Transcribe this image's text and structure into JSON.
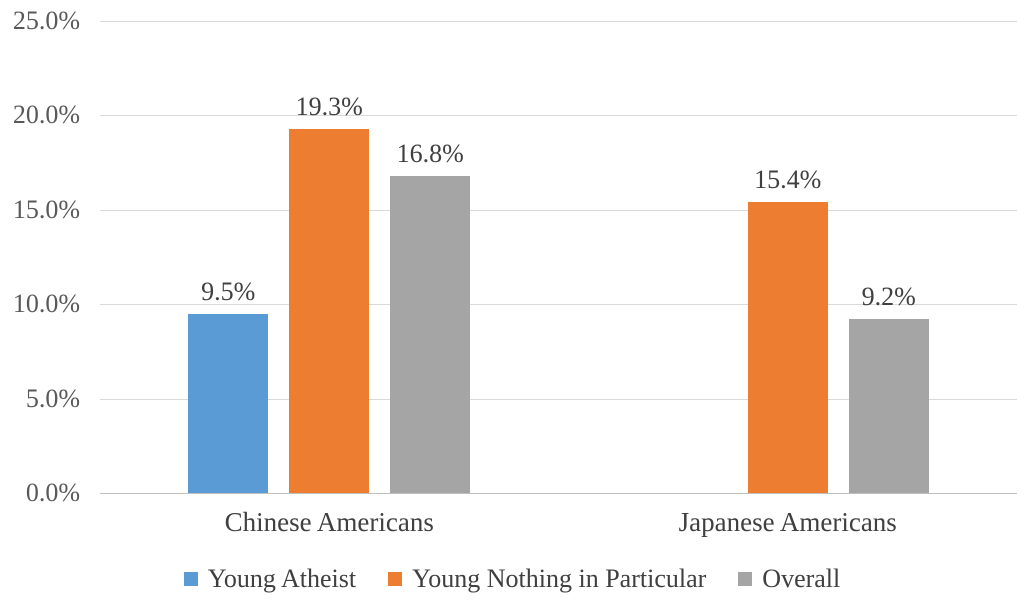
{
  "chart_data": {
    "type": "bar",
    "title": "",
    "xlabel": "",
    "ylabel": "",
    "categories": [
      "Chinese Americans",
      "Japanese Americans"
    ],
    "series": [
      {
        "name": "Young Atheist",
        "color": "#5B9BD5",
        "values": [
          9.5,
          null
        ],
        "labels": [
          "9.5%",
          null
        ]
      },
      {
        "name": "Young Nothing in Particular",
        "color": "#ED7D31",
        "values": [
          19.3,
          15.4
        ],
        "labels": [
          "19.3%",
          "15.4%"
        ]
      },
      {
        "name": "Overall",
        "color": "#A5A5A5",
        "values": [
          16.8,
          9.2
        ],
        "labels": [
          "16.8%",
          "9.2%"
        ]
      }
    ],
    "y_axis": {
      "min": 0,
      "max": 25,
      "ticks": [
        {
          "value": 0,
          "label": "0.0%"
        },
        {
          "value": 5,
          "label": "5.0%"
        },
        {
          "value": 10,
          "label": "10.0%"
        },
        {
          "value": 15,
          "label": "15.0%"
        },
        {
          "value": 20,
          "label": "20.0%"
        },
        {
          "value": 25,
          "label": "25.0%"
        }
      ]
    },
    "grid": true,
    "legend_position": "bottom"
  },
  "colors": {
    "background": "#FFFFFF",
    "gridline": "#D9D9D9",
    "axis_line": "#BFBFBF",
    "tick_label": "#595959",
    "data_label": "#404040",
    "category_label": "#404040",
    "legend_label": "#404040"
  }
}
